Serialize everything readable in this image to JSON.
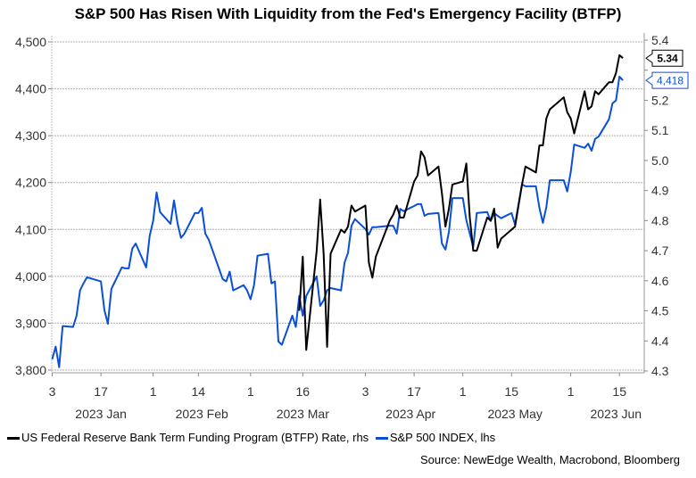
{
  "chart_data": {
    "type": "line",
    "title": "S&P 500 Has Risen With Liquidity from the Fed's Emergency Facility (BTFP)",
    "source": "Source: NewEdge Wealth, Macrobond, Bloomberg",
    "left_axis": {
      "ylim": [
        3800,
        4500
      ],
      "ticks": [
        "3,800",
        "3,900",
        "4,000",
        "4,100",
        "4,200",
        "4,300",
        "4,400",
        "4,500"
      ],
      "tick_values": [
        3800,
        3900,
        4000,
        4100,
        4200,
        4300,
        4400,
        4500
      ]
    },
    "right_axis": {
      "ylim": [
        4.3,
        5.4
      ],
      "ticks": [
        "4.3",
        "4.4",
        "4.5",
        "4.6",
        "4.7",
        "4.8",
        "4.9",
        "5.0",
        "5.1",
        "5.2",
        "5.3",
        "5.4"
      ],
      "tick_values": [
        4.3,
        4.4,
        4.5,
        4.6,
        4.7,
        4.8,
        4.9,
        5.0,
        5.1,
        5.2,
        5.3,
        5.4
      ],
      "labeled": [
        "4.3",
        "4.4",
        "4.5",
        "4.6",
        "4.7",
        "4.8",
        "4.9",
        "5.0",
        "5.1",
        "5.2",
        "5.4"
      ]
    },
    "x_ticks": [
      {
        "date": "2023-01-03",
        "label": "3"
      },
      {
        "date": "2023-01-17",
        "label": "17"
      },
      {
        "date": "2023-02-01",
        "label": "1"
      },
      {
        "date": "2023-02-14",
        "label": "14"
      },
      {
        "date": "2023-03-01",
        "label": "1"
      },
      {
        "date": "2023-03-16",
        "label": "16"
      },
      {
        "date": "2023-04-03",
        "label": "3"
      },
      {
        "date": "2023-04-17",
        "label": "17"
      },
      {
        "date": "2023-05-01",
        "label": "1"
      },
      {
        "date": "2023-05-15",
        "label": "15"
      },
      {
        "date": "2023-06-01",
        "label": "1"
      },
      {
        "date": "2023-06-15",
        "label": "15"
      }
    ],
    "months": [
      {
        "date": "2023-01-17",
        "label": "2023 Jan"
      },
      {
        "date": "2023-02-15",
        "label": "2023 Feb"
      },
      {
        "date": "2023-03-16",
        "label": "2023 Mar"
      },
      {
        "date": "2023-04-16",
        "label": "2023 Apr"
      },
      {
        "date": "2023-05-16",
        "label": "2023 May"
      },
      {
        "date": "2023-06-14",
        "label": "2023 Jun"
      }
    ],
    "xlim": [
      "2023-01-03",
      "2023-06-17"
    ],
    "grid": "horizontal dotted at left-axis ticks",
    "legend_placement": "bottom-left",
    "x": [
      "2023-01-03",
      "2023-01-04",
      "2023-01-05",
      "2023-01-06",
      "2023-01-09",
      "2023-01-10",
      "2023-01-11",
      "2023-01-12",
      "2023-01-13",
      "2023-01-17",
      "2023-01-18",
      "2023-01-19",
      "2023-01-20",
      "2023-01-23",
      "2023-01-24",
      "2023-01-25",
      "2023-01-26",
      "2023-01-27",
      "2023-01-30",
      "2023-01-31",
      "2023-02-01",
      "2023-02-02",
      "2023-02-03",
      "2023-02-06",
      "2023-02-07",
      "2023-02-08",
      "2023-02-09",
      "2023-02-10",
      "2023-02-13",
      "2023-02-14",
      "2023-02-15",
      "2023-02-16",
      "2023-02-17",
      "2023-02-21",
      "2023-02-22",
      "2023-02-23",
      "2023-02-24",
      "2023-02-27",
      "2023-02-28",
      "2023-03-01",
      "2023-03-02",
      "2023-03-03",
      "2023-03-06",
      "2023-03-07",
      "2023-03-08",
      "2023-03-09",
      "2023-03-10",
      "2023-03-13",
      "2023-03-14",
      "2023-03-15",
      "2023-03-16",
      "2023-03-17",
      "2023-03-20",
      "2023-03-21",
      "2023-03-22",
      "2023-03-23",
      "2023-03-24",
      "2023-03-27",
      "2023-03-28",
      "2023-03-29",
      "2023-03-30",
      "2023-03-31",
      "2023-04-03",
      "2023-04-04",
      "2023-04-05",
      "2023-04-06",
      "2023-04-10",
      "2023-04-11",
      "2023-04-12",
      "2023-04-13",
      "2023-04-14",
      "2023-04-17",
      "2023-04-18",
      "2023-04-19",
      "2023-04-20",
      "2023-04-21",
      "2023-04-24",
      "2023-04-25",
      "2023-04-26",
      "2023-04-27",
      "2023-04-28",
      "2023-05-01",
      "2023-05-02",
      "2023-05-03",
      "2023-05-04",
      "2023-05-05",
      "2023-05-08",
      "2023-05-09",
      "2023-05-10",
      "2023-05-11",
      "2023-05-12",
      "2023-05-15",
      "2023-05-16",
      "2023-05-17",
      "2023-05-18",
      "2023-05-19",
      "2023-05-22",
      "2023-05-23",
      "2023-05-24",
      "2023-05-25",
      "2023-05-26",
      "2023-05-30",
      "2023-05-31",
      "2023-06-01",
      "2023-06-02",
      "2023-06-05",
      "2023-06-06",
      "2023-06-07",
      "2023-06-08",
      "2023-06-09",
      "2023-06-12",
      "2023-06-13",
      "2023-06-14",
      "2023-06-15",
      "2023-06-16"
    ],
    "series": [
      {
        "name": "US Federal Reserve Bank Term Funding Program (BTFP) Rate, rhs",
        "axis": "right",
        "color": "#000000",
        "last_label": "5.34",
        "values": [
          null,
          null,
          null,
          null,
          null,
          null,
          null,
          null,
          null,
          null,
          null,
          null,
          null,
          null,
          null,
          null,
          null,
          null,
          null,
          null,
          null,
          null,
          null,
          null,
          null,
          null,
          null,
          null,
          null,
          null,
          null,
          null,
          null,
          null,
          null,
          null,
          null,
          null,
          null,
          null,
          null,
          null,
          null,
          null,
          null,
          null,
          null,
          null,
          null,
          4.5,
          4.68,
          4.37,
          4.7,
          4.87,
          4.69,
          4.38,
          4.69,
          4.77,
          4.76,
          4.78,
          4.85,
          4.83,
          4.85,
          4.66,
          4.61,
          4.68,
          4.8,
          4.82,
          4.85,
          4.81,
          4.81,
          4.93,
          4.95,
          5.03,
          5.01,
          4.95,
          4.98,
          4.89,
          4.78,
          4.84,
          4.92,
          4.93,
          4.99,
          4.81,
          4.7,
          4.7,
          4.81,
          4.8,
          4.84,
          4.71,
          4.74,
          4.77,
          4.78,
          4.85,
          4.92,
          4.98,
          4.96,
          5.05,
          5.05,
          5.14,
          5.17,
          5.21,
          5.16,
          5.14,
          5.09,
          5.23,
          5.17,
          5.18,
          5.23,
          5.22,
          5.26,
          5.26,
          5.29,
          5.35,
          5.34
        ]
      },
      {
        "name": "S&P 500 INDEX, lhs",
        "axis": "left",
        "color": "#0a4fd6",
        "last_label": "4,418",
        "values": [
          3823,
          3850,
          3806,
          3894,
          3892,
          3916,
          3970,
          3985,
          3998,
          3989,
          3928,
          3899,
          3973,
          4019,
          4017,
          4017,
          4059,
          4070,
          4019,
          4086,
          4118,
          4179,
          4137,
          4112,
          4162,
          4114,
          4082,
          4091,
          4135,
          4135,
          4146,
          4091,
          4078,
          3994,
          3989,
          4010,
          3970,
          3981,
          3970,
          3951,
          3981,
          4044,
          4048,
          3985,
          3989,
          3861,
          3854,
          3916,
          3892,
          3958,
          3916,
          3958,
          4000,
          3937,
          3949,
          3970,
          3975,
          3970,
          4029,
          4050,
          4108,
          4122,
          4101,
          4089,
          4105,
          4105,
          4108,
          4108,
          4091,
          4144,
          4139,
          4150,
          4154,
          4154,
          4129,
          4133,
          4135,
          4070,
          4057,
          4095,
          4167,
          4167,
          4120,
          4091,
          4063,
          4135,
          4137,
          4118,
          4135,
          4129,
          4124,
          4135,
          4110,
          4154,
          4196,
          4192,
          4192,
          4146,
          4114,
          4148,
          4205,
          4205,
          4181,
          4222,
          4281,
          4274,
          4283,
          4268,
          4293,
          4298,
          4335,
          4369,
          4375,
          4426,
          4418
        ]
      }
    ]
  }
}
